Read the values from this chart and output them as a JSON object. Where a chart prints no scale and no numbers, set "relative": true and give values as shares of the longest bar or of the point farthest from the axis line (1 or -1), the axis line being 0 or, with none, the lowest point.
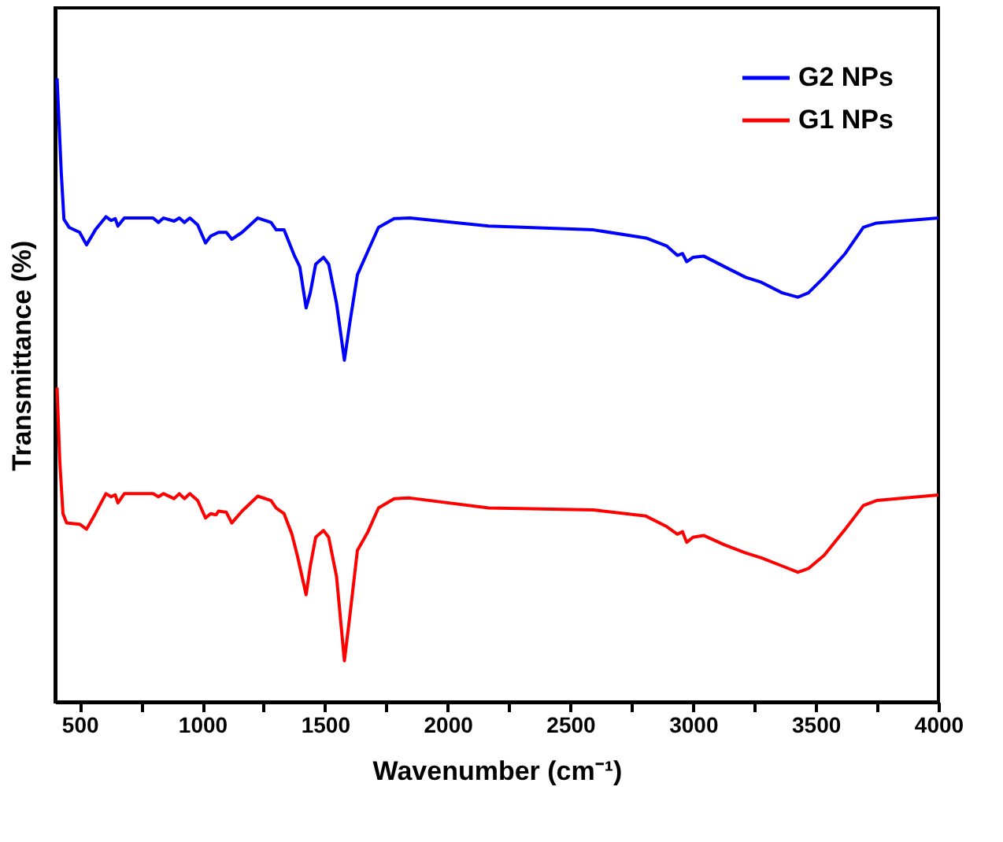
{
  "chart_data": {
    "type": "line",
    "xlabel": "Wavenumber (cm⁻¹)",
    "ylabel": "Transmittance (%)",
    "relative": true,
    "xlim": [
      400,
      4000
    ],
    "xticks": [
      500,
      {
        "value": 750,
        "label": null
      },
      1000,
      {
        "value": 1250,
        "label": null
      },
      1500,
      {
        "value": 1750,
        "label": null
      },
      2000,
      {
        "value": 2250,
        "label": null
      },
      2500,
      {
        "value": 2750,
        "label": null
      },
      3000,
      {
        "value": 3250,
        "label": null
      },
      3500,
      {
        "value": 3750,
        "label": null
      },
      4000
    ],
    "grid": false,
    "legend": "top right",
    "marker": "none",
    "line_style": "solid",
    "series": [
      {
        "name": "G2 NPs",
        "color": "#0000ff",
        "x": [
          408,
          425,
          436,
          457,
          500,
          528,
          564,
          607,
          628,
          645,
          656,
          682,
          799,
          821,
          842,
          885,
          906,
          927,
          949,
          981,
          1013,
          1034,
          1066,
          1098,
          1120,
          1162,
          1226,
          1280,
          1301,
          1333,
          1376,
          1397,
          1423,
          1440,
          1462,
          1494,
          1515,
          1547,
          1579,
          1600,
          1632,
          1675,
          1718,
          1782,
          1846,
          2167,
          2594,
          2808,
          2893,
          2936,
          2957,
          2974,
          3000,
          3043,
          3128,
          3214,
          3278,
          3363,
          3427,
          3470,
          3534,
          3620,
          3694,
          3748,
          4000
        ],
        "values": [
          1.0,
          0.849,
          0.774,
          0.761,
          0.753,
          0.733,
          0.757,
          0.778,
          0.772,
          0.775,
          0.763,
          0.776,
          0.776,
          0.769,
          0.776,
          0.771,
          0.776,
          0.769,
          0.776,
          0.765,
          0.736,
          0.747,
          0.753,
          0.753,
          0.742,
          0.753,
          0.776,
          0.769,
          0.757,
          0.757,
          0.715,
          0.698,
          0.632,
          0.656,
          0.702,
          0.713,
          0.702,
          0.639,
          0.548,
          0.605,
          0.685,
          0.723,
          0.761,
          0.775,
          0.776,
          0.763,
          0.757,
          0.744,
          0.731,
          0.716,
          0.719,
          0.706,
          0.713,
          0.715,
          0.698,
          0.681,
          0.673,
          0.656,
          0.649,
          0.656,
          0.681,
          0.719,
          0.761,
          0.768,
          0.776
        ]
      },
      {
        "name": "G1 NPs",
        "color": "#ff0000",
        "x": [
          408,
          419,
          432,
          447,
          500,
          528,
          564,
          607,
          628,
          645,
          656,
          682,
          799,
          821,
          842,
          885,
          906,
          927,
          949,
          981,
          1013,
          1034,
          1056,
          1066,
          1098,
          1120,
          1162,
          1226,
          1280,
          1301,
          1333,
          1365,
          1387,
          1423,
          1440,
          1462,
          1494,
          1515,
          1547,
          1579,
          1600,
          1632,
          1675,
          1718,
          1782,
          1846,
          2167,
          2594,
          2808,
          2893,
          2936,
          2957,
          2974,
          3000,
          3043,
          3128,
          3214,
          3278,
          3363,
          3427,
          3470,
          3534,
          3620,
          3694,
          3748,
          4000
        ],
        "values": [
          0.504,
          0.386,
          0.302,
          0.287,
          0.285,
          0.277,
          0.302,
          0.334,
          0.329,
          0.332,
          0.319,
          0.334,
          0.334,
          0.329,
          0.334,
          0.326,
          0.334,
          0.326,
          0.334,
          0.323,
          0.295,
          0.302,
          0.3,
          0.306,
          0.304,
          0.287,
          0.306,
          0.33,
          0.323,
          0.311,
          0.302,
          0.269,
          0.235,
          0.172,
          0.218,
          0.264,
          0.275,
          0.264,
          0.201,
          0.066,
          0.134,
          0.243,
          0.273,
          0.311,
          0.326,
          0.327,
          0.311,
          0.308,
          0.298,
          0.281,
          0.269,
          0.273,
          0.256,
          0.264,
          0.267,
          0.252,
          0.239,
          0.231,
          0.218,
          0.208,
          0.214,
          0.235,
          0.277,
          0.315,
          0.323,
          0.332
        ]
      }
    ]
  }
}
